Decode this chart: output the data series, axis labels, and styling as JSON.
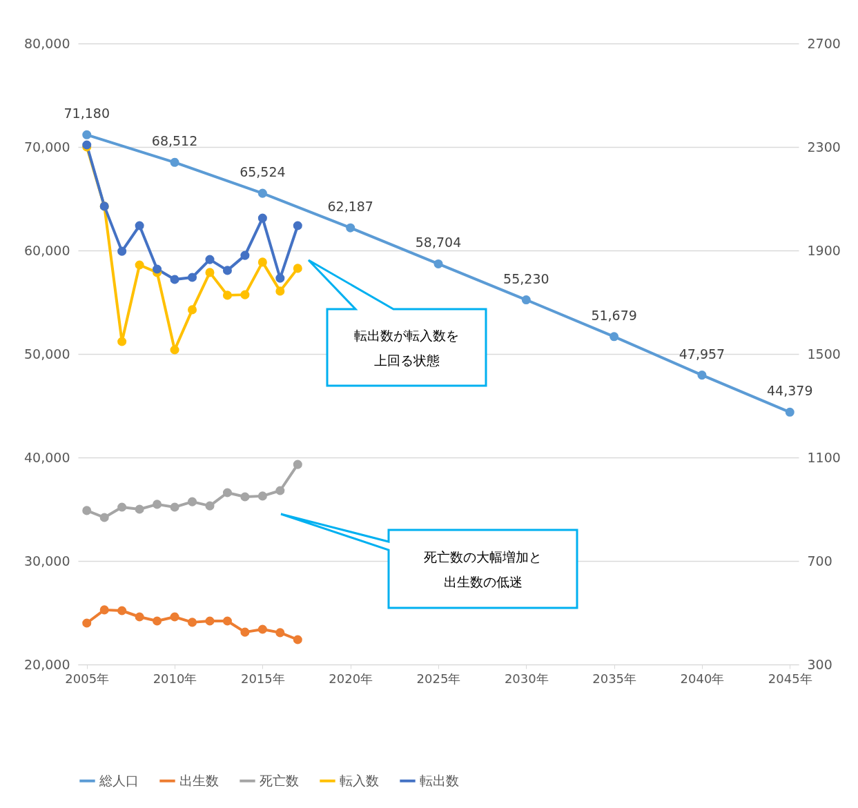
{
  "chart_data": {
    "type": "line",
    "xlim": [
      2004.5,
      2045.5
    ],
    "xticks": [
      {
        "value": 2005,
        "label": "2005年"
      },
      {
        "value": 2010,
        "label": "2010年"
      },
      {
        "value": 2015,
        "label": "2015年"
      },
      {
        "value": 2020,
        "label": "2020年"
      },
      {
        "value": 2025,
        "label": "2025年"
      },
      {
        "value": 2030,
        "label": "2030年"
      },
      {
        "value": 2035,
        "label": "2035年"
      },
      {
        "value": 2040,
        "label": "2040年"
      },
      {
        "value": 2045,
        "label": "2045年"
      }
    ],
    "ylim": [
      20000,
      80000
    ],
    "yticks": [
      {
        "value": 20000,
        "label": "20,000"
      },
      {
        "value": 30000,
        "label": "30,000"
      },
      {
        "value": 40000,
        "label": "40,000"
      },
      {
        "value": 50000,
        "label": "50,000"
      },
      {
        "value": 60000,
        "label": "60,000"
      },
      {
        "value": 70000,
        "label": "70,000"
      },
      {
        "value": 80000,
        "label": "80,000"
      }
    ],
    "y2lim": [
      300,
      2700
    ],
    "y2ticks": [
      300,
      700,
      1100,
      1500,
      1900,
      2300,
      2700
    ],
    "grid": "y",
    "legend": "bottom",
    "marker": "circle",
    "series": [
      {
        "name": "総人口",
        "color": "#5b9bd5",
        "x": [
          2005,
          2010,
          2015,
          2020,
          2025,
          2030,
          2035,
          2040,
          2045
        ],
        "values": [
          71180,
          68512,
          65524,
          62187,
          58704,
          55230,
          51679,
          47957,
          44379
        ],
        "value_labels": [
          "71,180",
          "68,512",
          "65,524",
          "62,187",
          "58,704",
          "55,230",
          "51,679",
          "47,957",
          "44,379"
        ]
      },
      {
        "name": "出生数",
        "color": "#ed7d31",
        "axis": "y2",
        "x": [
          2005,
          2006,
          2007,
          2008,
          2009,
          2010,
          2011,
          2012,
          2013,
          2014,
          2015,
          2016,
          2017
        ],
        "values": [
          460,
          511,
          508,
          484,
          468,
          484,
          463,
          468,
          468,
          425,
          436,
          423,
          396
        ]
      },
      {
        "name": "死亡数",
        "color": "#a5a5a5",
        "axis": "y2",
        "x": [
          2005,
          2006,
          2007,
          2008,
          2009,
          2010,
          2011,
          2012,
          2013,
          2014,
          2015,
          2016,
          2017
        ],
        "values": [
          895,
          868,
          908,
          900,
          919,
          908,
          929,
          913,
          964,
          948,
          951,
          972,
          1073
        ]
      },
      {
        "name": "転入数",
        "color": "#ffc000",
        "axis": "y2",
        "x": [
          2005,
          2006,
          2007,
          2008,
          2009,
          2010,
          2011,
          2012,
          2013,
          2014,
          2015,
          2016,
          2017
        ],
        "values": [
          2300,
          2071,
          1548,
          1844,
          1815,
          1516,
          1671,
          1815,
          1727,
          1729,
          1855,
          1743,
          1831
        ]
      },
      {
        "name": "転出数",
        "color": "#4472c4",
        "axis": "y2",
        "x": [
          2005,
          2006,
          2007,
          2008,
          2009,
          2010,
          2011,
          2012,
          2013,
          2014,
          2015,
          2016,
          2017
        ],
        "values": [
          2308,
          2071,
          1897,
          1996,
          1828,
          1788,
          1796,
          1865,
          1823,
          1881,
          2025,
          1793,
          1996
        ]
      }
    ],
    "annotations": [
      "転出数が転入数を上回る状態",
      "死亡数の大幅増加と出生数の低迷"
    ]
  }
}
